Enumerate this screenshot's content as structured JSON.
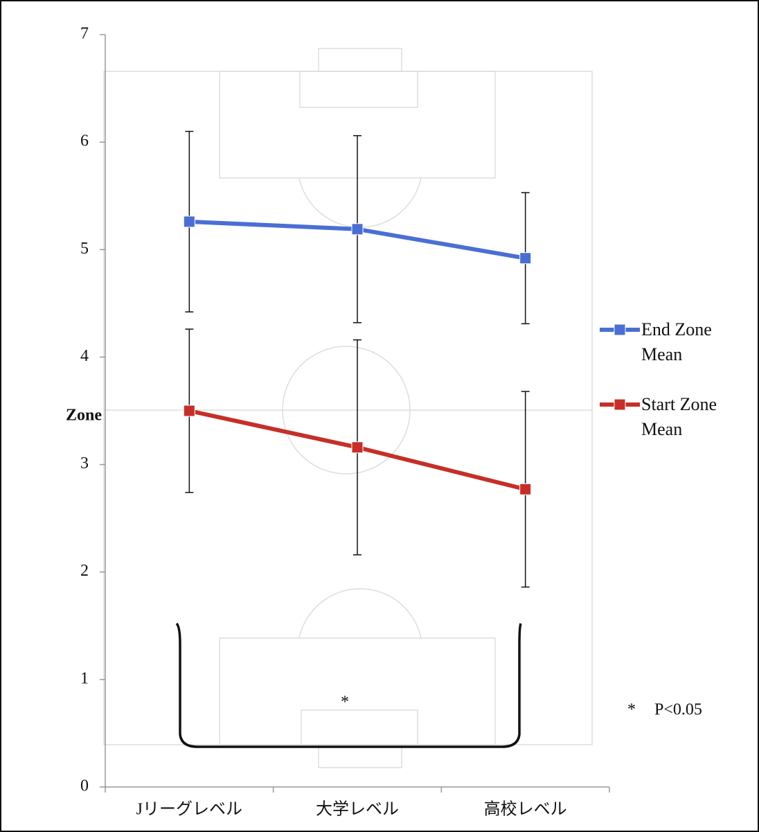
{
  "chart_data": {
    "type": "line",
    "y_label": "Zone",
    "categories": [
      "Jリーグレベル",
      "大学レベル",
      "高校レベル"
    ],
    "series": [
      {
        "name": "End Zone Mean",
        "color": "#4a6fd4",
        "values": [
          5.26,
          5.19,
          4.92
        ],
        "errors": [
          0.84,
          0.87,
          0.61
        ]
      },
      {
        "name": "Start Zone Mean",
        "color": "#c62f28",
        "values": [
          3.5,
          3.16,
          2.77
        ],
        "errors": [
          0.76,
          1.0,
          0.91
        ]
      }
    ],
    "ylim": [
      0,
      7
    ],
    "yticks": [
      0,
      1,
      2,
      3,
      4,
      5,
      6,
      7
    ],
    "legend": "right",
    "annotations": {
      "significance_mark": "*",
      "note_symbol": "*",
      "note_text": "P<0.05"
    }
  }
}
